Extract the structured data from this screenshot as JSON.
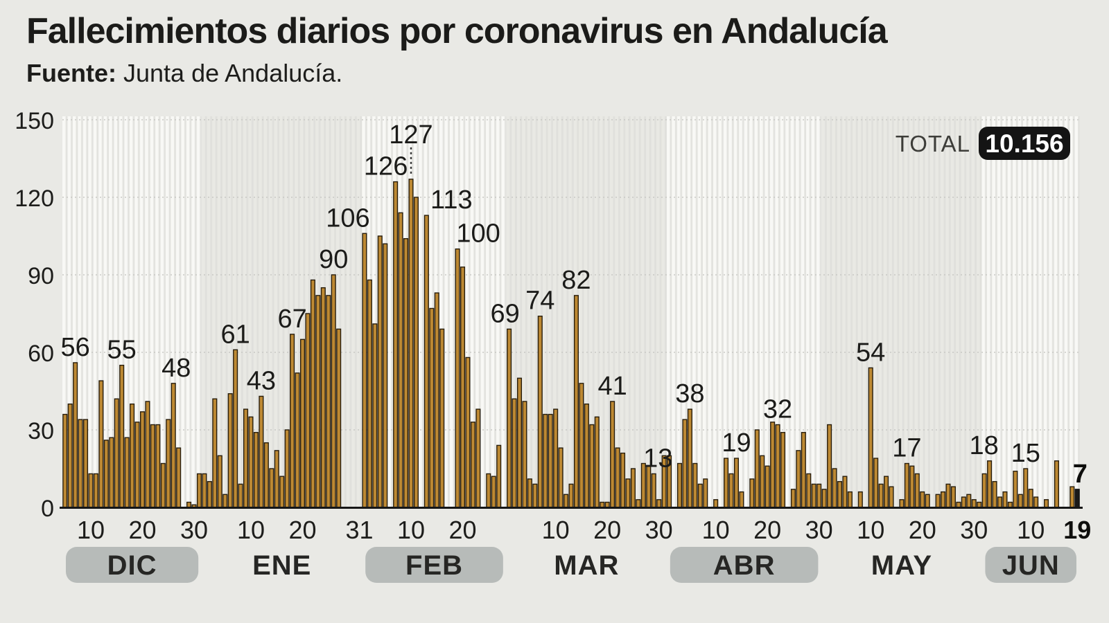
{
  "header": {
    "title": "Fallecimientos diarios por coronavirus en Andalucía",
    "source_label": "Fuente:",
    "source_text": "Junta de Andalucía."
  },
  "total": {
    "label": "TOTAL",
    "value": "10.156"
  },
  "chart_data": {
    "type": "bar",
    "title": "Fallecimientos diarios por coronavirus en Andalucía",
    "xlabel": "",
    "ylabel": "",
    "ylim": [
      0,
      150
    ],
    "y_ticks": [
      0,
      30,
      60,
      90,
      120,
      150
    ],
    "grid": "dotted horizontal lines every 30",
    "legend_position": "none",
    "months": [
      {
        "name": "DIC",
        "striped": true,
        "pill": true,
        "start_day": 5,
        "ticks": [
          10,
          20,
          30
        ],
        "values": [
          36,
          40,
          56,
          34,
          34,
          13,
          13,
          49,
          26,
          27,
          42,
          55,
          27,
          40,
          33,
          37,
          41,
          32,
          32,
          17,
          34,
          48,
          23,
          0,
          2,
          1,
          13
        ]
      },
      {
        "name": "ENE",
        "striped": false,
        "pill": false,
        "start_day": 1,
        "ticks": [
          10,
          20,
          31
        ],
        "values": [
          13,
          10,
          42,
          20,
          5,
          44,
          61,
          9,
          38,
          35,
          29,
          43,
          25,
          15,
          22,
          12,
          30,
          67,
          52,
          65,
          75,
          88,
          82,
          85,
          82,
          90,
          69,
          0,
          0,
          0,
          0
        ]
      },
      {
        "name": "FEB",
        "striped": true,
        "pill": true,
        "start_day": 1,
        "ticks": [
          10,
          20
        ],
        "values": [
          106,
          88,
          71,
          105,
          102,
          0,
          126,
          114,
          104,
          127,
          120,
          0,
          113,
          77,
          83,
          69,
          0,
          0,
          100,
          93,
          58,
          33,
          38,
          0,
          13,
          12,
          24,
          0
        ]
      },
      {
        "name": "MAR",
        "striped": false,
        "pill": false,
        "start_day": 1,
        "ticks": [
          10,
          20,
          30
        ],
        "values": [
          69,
          42,
          50,
          41,
          11,
          9,
          74,
          36,
          36,
          38,
          23,
          5,
          9,
          82,
          48,
          40,
          32,
          35,
          2,
          2,
          41,
          23,
          21,
          11,
          15,
          3,
          17,
          16,
          13,
          3,
          20
        ]
      },
      {
        "name": "ABR",
        "striped": true,
        "pill": true,
        "start_day": 1,
        "ticks": [
          10,
          20,
          30
        ],
        "values": [
          20,
          0,
          17,
          34,
          38,
          17,
          9,
          11,
          0,
          3,
          0,
          19,
          13,
          19,
          6,
          0,
          11,
          30,
          20,
          16,
          33,
          32,
          29,
          0,
          7,
          22,
          29,
          13,
          9,
          9
        ]
      },
      {
        "name": "MAY",
        "striped": false,
        "pill": false,
        "start_day": 1,
        "ticks": [
          10,
          20,
          30
        ],
        "values": [
          7,
          32,
          15,
          10,
          12,
          6,
          0,
          6,
          0,
          54,
          19,
          9,
          12,
          8,
          0,
          3,
          17,
          16,
          13,
          6,
          5,
          0,
          5,
          6,
          9,
          8,
          2,
          4,
          5,
          3,
          2
        ]
      },
      {
        "name": "JUN",
        "striped": true,
        "pill": true,
        "start_day": 1,
        "ticks": [
          10,
          19
        ],
        "bold_tick": 19,
        "last_bar_black": true,
        "values": [
          13,
          18,
          10,
          4,
          6,
          2,
          14,
          5,
          15,
          7,
          4,
          0,
          3,
          0,
          18,
          0,
          0,
          8,
          7
        ]
      }
    ],
    "annotations": [
      {
        "month": 0,
        "index": 2,
        "text": "56"
      },
      {
        "month": 0,
        "index": 11,
        "text": "55"
      },
      {
        "month": 0,
        "index": 21,
        "text": "48",
        "dx": 4
      },
      {
        "month": 1,
        "index": 6,
        "text": "61"
      },
      {
        "month": 1,
        "index": 11,
        "text": "43"
      },
      {
        "month": 1,
        "index": 17,
        "text": "67"
      },
      {
        "month": 1,
        "index": 25,
        "text": "90"
      },
      {
        "month": 2,
        "index": 0,
        "text": "106",
        "dx": -24
      },
      {
        "month": 2,
        "index": 6,
        "text": "126",
        "dx": -14
      },
      {
        "month": 2,
        "index": 9,
        "text": "127",
        "leader": true
      },
      {
        "month": 2,
        "index": 12,
        "text": "113",
        "dx": 36
      },
      {
        "month": 2,
        "index": 18,
        "text": "100",
        "dx": 30
      },
      {
        "month": 3,
        "index": 0,
        "text": "69",
        "dx": -6
      },
      {
        "month": 3,
        "index": 6,
        "text": "74"
      },
      {
        "month": 3,
        "index": 13,
        "text": "82"
      },
      {
        "month": 3,
        "index": 20,
        "text": "41"
      },
      {
        "month": 3,
        "index": 28,
        "text": "13",
        "dx": 6
      },
      {
        "month": 4,
        "index": 4,
        "text": "38"
      },
      {
        "month": 4,
        "index": 13,
        "text": "19"
      },
      {
        "month": 4,
        "index": 21,
        "text": "32"
      },
      {
        "month": 5,
        "index": 9,
        "text": "54"
      },
      {
        "month": 5,
        "index": 16,
        "text": "17"
      },
      {
        "month": 6,
        "index": 1,
        "text": "18",
        "dx": -8
      },
      {
        "month": 6,
        "index": 8,
        "text": "15"
      },
      {
        "month": 6,
        "index": 18,
        "text": "7",
        "bold": true,
        "dx": 4
      }
    ],
    "colors": {
      "page_bg": "#e9e9e5",
      "bar_fill": "#bd8933",
      "bar_stroke": "#271d0d",
      "last_bar": "#1a1a1a",
      "pill": "#b7bbb9",
      "grid": "#c2c2be",
      "axis": "#161616",
      "badge_bg": "#141414",
      "badge_text": "#ffffff",
      "stripe_light": "#f8f8f5",
      "stripe_dark": "#e3e3df",
      "plain_light": "#e9e9e4",
      "plain_dark": "#e0e0dc"
    }
  }
}
